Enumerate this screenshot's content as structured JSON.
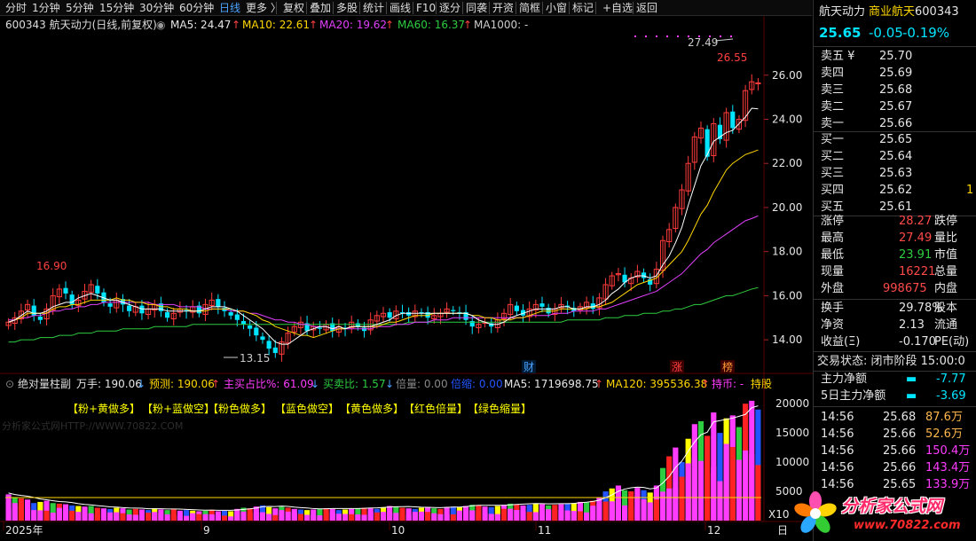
{
  "toolbar": {
    "items": [
      "分时",
      "1分钟",
      "5分钟",
      "15分钟",
      "30分钟",
      "60分钟",
      "日线",
      "更多 〉",
      "复权",
      "叠加",
      "多股",
      "统计",
      "画线",
      "F10",
      "逐分",
      "同袭",
      "开资",
      "简框",
      "小窗",
      "标记",
      "+自选",
      "返回"
    ]
  },
  "main": {
    "title": "600343 航天动力(日线,前复权)",
    "ma5": "MA5: 24.47",
    "ma10": "MA10: 22.61",
    "ma20": "MA20: 19.62",
    "ma60": "MA60: 16.37",
    "ma1000": "MA1000: -",
    "high_label": "27.49",
    "left_high_label": "16.90",
    "low_label": "13.15",
    "last_high_label": "26.55",
    "markers": [
      "财",
      "涨",
      "榜"
    ],
    "y_ticks": [
      "26.00",
      "24.00",
      "22.00",
      "20.00",
      "18.00",
      "16.00",
      "14.00"
    ]
  },
  "volume": {
    "title": "绝对量柱副",
    "wan": "万手: 190.06",
    "predict": "预测: 190.06",
    "buy_ratio": "主买占比%: 61.09",
    "buy_sell": "买卖比: 1.57",
    "bei": "倍量: 0.00",
    "bei2": "倍缩: 0.00",
    "vma5": "MA5: 1719698.75",
    "vma120": "MA120: 395536.38",
    "hold": "持币: -",
    "hold2": "持股",
    "tags": [
      "【粉+黄做多】",
      "【粉+蓝做空】",
      "【粉色做多】",
      "【蓝色做空】",
      "【黄色做多】",
      "【红色倍量】",
      "【绿色缩量】"
    ],
    "watermark": "分析家公式网HTTP://WWW.70822.COM",
    "y_ticks": [
      "20000",
      "15000",
      "10000",
      "5000"
    ],
    "unit": "X10"
  },
  "xaxis": {
    "labels": [
      "2025年",
      "9",
      "10",
      "11",
      "12"
    ],
    "right": "日"
  },
  "panel": {
    "name": "航天动力",
    "sector": "商业航天",
    "code": "600343",
    "price": "25.65",
    "change": "-0.05",
    "pct": "-0.19%",
    "asks": [
      {
        "label": "卖五 ¥",
        "price": "25.70"
      },
      {
        "label": "卖四",
        "price": "25.69"
      },
      {
        "label": "卖三",
        "price": "25.68"
      },
      {
        "label": "卖二",
        "price": "25.67"
      },
      {
        "label": "卖一",
        "price": "25.66"
      }
    ],
    "bids": [
      {
        "label": "买一",
        "price": "25.65",
        "qty": ""
      },
      {
        "label": "买二",
        "price": "25.64",
        "qty": ""
      },
      {
        "label": "买三",
        "price": "25.63",
        "qty": ""
      },
      {
        "label": "买四",
        "price": "25.62",
        "qty": "1"
      },
      {
        "label": "买五",
        "price": "25.61",
        "qty": ""
      }
    ],
    "stats1": [
      {
        "l": "涨停",
        "v": "28.27",
        "r": "跌停",
        "c": "red"
      },
      {
        "l": "最高",
        "v": "27.49",
        "r": "量比",
        "c": "red"
      },
      {
        "l": "最低",
        "v": "23.91",
        "r": "市值",
        "c": "green"
      },
      {
        "l": "现量",
        "v": "16221",
        "r": "总量",
        "c": "red"
      },
      {
        "l": "外盘",
        "v": "998675",
        "r": "内盘",
        "c": "red"
      }
    ],
    "stats2": [
      {
        "l": "换手",
        "v": "29.78%",
        "r": "股本"
      },
      {
        "l": "净资",
        "v": "2.13",
        "r": "流通"
      },
      {
        "l": "收益(Ξ)",
        "v": "-0.170",
        "r": "PE(动)"
      }
    ],
    "status_label": "交易状态: 闭市阶段 15:00:0",
    "fund": [
      {
        "l": "主力净额",
        "v": "-7.77"
      },
      {
        "l": "5日主力净额",
        "v": "-3.69"
      }
    ],
    "ticks": [
      {
        "t": "14:56",
        "p": "25.68",
        "q": "87.6万",
        "c": "orange"
      },
      {
        "t": "14:56",
        "p": "25.66",
        "q": "52.6万",
        "c": "orange"
      },
      {
        "t": "14:56",
        "p": "25.66",
        "q": "150.4万",
        "c": "magenta"
      },
      {
        "t": "14:56",
        "p": "25.66",
        "q": "143.4万",
        "c": "magenta"
      },
      {
        "t": "14:56",
        "p": "25.65",
        "q": "133.9万",
        "c": "magenta"
      }
    ]
  },
  "logo": {
    "text": "分析家公式网",
    "url": "www.70822.com"
  },
  "chart_data": {
    "type": "candlestick",
    "ylim": [
      13.0,
      27.8
    ],
    "close": [
      14.8,
      15.0,
      15.3,
      15.6,
      15.1,
      14.9,
      15.4,
      16.0,
      16.3,
      16.1,
      15.6,
      15.8,
      16.2,
      16.5,
      16.1,
      15.7,
      15.5,
      15.8,
      15.6,
      15.3,
      15.5,
      15.2,
      15.4,
      15.6,
      15.3,
      15.0,
      15.2,
      15.4,
      15.3,
      15.5,
      15.2,
      15.6,
      15.8,
      15.5,
      15.3,
      15.1,
      14.9,
      14.7,
      14.5,
      14.2,
      14.0,
      13.6,
      13.4,
      13.9,
      14.3,
      14.6,
      14.8,
      14.4,
      14.6,
      14.5,
      14.7,
      14.4,
      14.6,
      14.5,
      14.8,
      14.6,
      14.4,
      14.9,
      15.1,
      15.2,
      15.0,
      15.3,
      15.2,
      15.1,
      15.3,
      15.2,
      15.0,
      15.1,
      15.2,
      15.4,
      15.3,
      15.2,
      14.9,
      14.6,
      14.7,
      14.8,
      14.6,
      14.9,
      15.2,
      15.6,
      15.3,
      15.1,
      15.4,
      15.6,
      15.5,
      15.2,
      15.4,
      15.6,
      15.5,
      15.3,
      15.5,
      15.7,
      15.4,
      15.9,
      16.5,
      16.9,
      17.0,
      16.6,
      16.8,
      17.1,
      16.8,
      16.5,
      17.2,
      18.5,
      19.0,
      20.0,
      20.8,
      22.0,
      23.2,
      23.6,
      22.3,
      23.8,
      23.1,
      24.3,
      23.6,
      24.0,
      25.3,
      25.7,
      25.65
    ],
    "volume": [
      4500,
      4000,
      3800,
      3600,
      3000,
      3200,
      3400,
      3000,
      2900,
      2800,
      2600,
      2500,
      2400,
      2500,
      2200,
      2100,
      2000,
      2200,
      2100,
      1900,
      2000,
      1900,
      1800,
      2100,
      1900,
      1800,
      1900,
      1700,
      1800,
      1700,
      1600,
      1700,
      1800,
      1600,
      1700,
      1600,
      2000,
      2200,
      2100,
      2400,
      2600,
      2300,
      2100,
      2400,
      2200,
      2000,
      1900,
      1800,
      1900,
      2000,
      2100,
      2000,
      1800,
      1900,
      2000,
      2100,
      2200,
      2100,
      2000,
      2300,
      2500,
      2400,
      2200,
      2100,
      2000,
      2200,
      2300,
      2100,
      2000,
      2200,
      2400,
      2300,
      2500,
      2700,
      2600,
      2400,
      2300,
      2500,
      2700,
      2900,
      2800,
      2600,
      2700,
      2900,
      2800,
      2600,
      2700,
      2800,
      2900,
      3000,
      3200,
      3100,
      3400,
      4000,
      5000,
      5500,
      6000,
      5200,
      5000,
      5600,
      5200,
      4800,
      6000,
      9000,
      11000,
      12500,
      10000,
      14000,
      16500,
      17000,
      14500,
      18500,
      15000,
      17500,
      18000,
      16000,
      20000,
      20500,
      19000
    ],
    "ma5": [
      14.8,
      14.9,
      15.1,
      15.3,
      15.2,
      15.2,
      15.3,
      15.5,
      15.6,
      15.7,
      15.7,
      15.9,
      16.0,
      16.1,
      16.0,
      15.9,
      15.8,
      15.8,
      15.7,
      15.6,
      15.5,
      15.4,
      15.4,
      15.4,
      15.4,
      15.3,
      15.3,
      15.3,
      15.3,
      15.3,
      15.3,
      15.4,
      15.5,
      15.5,
      15.5,
      15.4,
      15.3,
      15.1,
      14.9,
      14.7,
      14.5,
      14.2,
      13.9,
      13.8,
      13.8,
      14.0,
      14.2,
      14.4,
      14.5,
      14.6,
      14.6,
      14.5,
      14.6,
      14.5,
      14.6,
      14.6,
      14.6,
      14.6,
      14.7,
      14.8,
      14.9,
      15.1,
      15.2,
      15.2,
      15.2,
      15.2,
      15.2,
      15.2,
      15.2,
      15.2,
      15.2,
      15.2,
      15.2,
      15.1,
      14.9,
      14.8,
      14.7,
      14.7,
      14.8,
      15.0,
      15.1,
      15.2,
      15.3,
      15.4,
      15.4,
      15.4,
      15.4,
      15.5,
      15.5,
      15.4,
      15.4,
      15.5,
      15.5,
      15.6,
      15.8,
      16.1,
      16.3,
      16.6,
      16.8,
      16.9,
      16.9,
      16.8,
      16.9,
      17.4,
      17.8,
      18.4,
      19.1,
      20.1,
      21.0,
      21.9,
      22.4,
      23.0,
      23.2,
      23.4,
      23.5,
      23.8,
      24.1,
      24.5,
      24.47
    ],
    "ma10": [
      14.8,
      14.9,
      15.0,
      15.2,
      15.2,
      15.2,
      15.2,
      15.4,
      15.5,
      15.5,
      15.6,
      15.6,
      15.7,
      15.8,
      15.8,
      15.8,
      15.8,
      15.9,
      15.8,
      15.8,
      15.7,
      15.7,
      15.6,
      15.6,
      15.5,
      15.5,
      15.4,
      15.4,
      15.4,
      15.3,
      15.3,
      15.3,
      15.4,
      15.4,
      15.4,
      15.4,
      15.3,
      15.3,
      15.2,
      15.1,
      14.9,
      14.8,
      14.6,
      14.5,
      14.4,
      14.3,
      14.2,
      14.2,
      14.1,
      14.2,
      14.3,
      14.4,
      14.5,
      14.5,
      14.6,
      14.6,
      14.6,
      14.6,
      14.6,
      14.7,
      14.8,
      14.8,
      14.9,
      15.0,
      15.1,
      15.1,
      15.1,
      15.2,
      15.2,
      15.2,
      15.2,
      15.2,
      15.2,
      15.1,
      15.1,
      15.0,
      15.0,
      14.9,
      14.9,
      14.9,
      15.0,
      15.0,
      15.1,
      15.2,
      15.3,
      15.3,
      15.3,
      15.4,
      15.4,
      15.4,
      15.4,
      15.4,
      15.5,
      15.5,
      15.6,
      15.7,
      15.9,
      16.1,
      16.3,
      16.5,
      16.6,
      16.7,
      16.8,
      17.1,
      17.4,
      17.7,
      18.0,
      18.5,
      19.1,
      19.7,
      20.1,
      20.7,
      21.2,
      21.7,
      22.0,
      22.2,
      22.4,
      22.5,
      22.61
    ],
    "ma20": [
      14.9,
      14.9,
      15.0,
      15.0,
      15.1,
      15.1,
      15.2,
      15.3,
      15.3,
      15.4,
      15.4,
      15.5,
      15.5,
      15.6,
      15.6,
      15.7,
      15.7,
      15.7,
      15.7,
      15.7,
      15.7,
      15.7,
      15.7,
      15.6,
      15.6,
      15.6,
      15.6,
      15.5,
      15.5,
      15.5,
      15.5,
      15.4,
      15.4,
      15.4,
      15.4,
      15.3,
      15.3,
      15.3,
      15.2,
      15.2,
      15.1,
      15.0,
      14.9,
      14.9,
      14.8,
      14.8,
      14.7,
      14.7,
      14.6,
      14.6,
      14.6,
      14.5,
      14.5,
      14.5,
      14.5,
      14.5,
      14.5,
      14.5,
      14.6,
      14.6,
      14.6,
      14.7,
      14.7,
      14.7,
      14.8,
      14.8,
      14.8,
      14.9,
      14.9,
      14.9,
      15.0,
      15.0,
      15.0,
      15.0,
      15.0,
      15.0,
      15.0,
      15.0,
      15.0,
      15.0,
      15.0,
      15.0,
      15.1,
      15.1,
      15.1,
      15.1,
      15.2,
      15.2,
      15.2,
      15.3,
      15.3,
      15.3,
      15.3,
      15.4,
      15.4,
      15.5,
      15.6,
      15.7,
      15.8,
      15.9,
      16.0,
      16.1,
      16.2,
      16.4,
      16.6,
      16.8,
      17.0,
      17.3,
      17.6,
      17.9,
      18.1,
      18.4,
      18.6,
      18.8,
      19.0,
      19.2,
      19.4,
      19.5,
      19.62
    ],
    "ma60": [
      13.9,
      13.9,
      14.0,
      14.0,
      14.0,
      14.1,
      14.1,
      14.1,
      14.2,
      14.2,
      14.2,
      14.3,
      14.3,
      14.3,
      14.4,
      14.4,
      14.4,
      14.4,
      14.5,
      14.5,
      14.5,
      14.5,
      14.5,
      14.6,
      14.6,
      14.6,
      14.6,
      14.6,
      14.6,
      14.7,
      14.7,
      14.7,
      14.7,
      14.7,
      14.7,
      14.7,
      14.7,
      14.7,
      14.7,
      14.7,
      14.7,
      14.7,
      14.7,
      14.7,
      14.7,
      14.7,
      14.7,
      14.7,
      14.7,
      14.7,
      14.7,
      14.7,
      14.7,
      14.7,
      14.7,
      14.7,
      14.7,
      14.7,
      14.7,
      14.7,
      14.7,
      14.7,
      14.7,
      14.8,
      14.8,
      14.8,
      14.8,
      14.8,
      14.8,
      14.8,
      14.8,
      14.8,
      14.8,
      14.8,
      14.8,
      14.8,
      14.8,
      14.8,
      14.8,
      14.8,
      14.8,
      14.8,
      14.8,
      14.8,
      14.8,
      14.8,
      14.8,
      14.8,
      14.9,
      14.9,
      14.9,
      14.9,
      14.9,
      14.9,
      15.0,
      15.0,
      15.0,
      15.1,
      15.1,
      15.1,
      15.2,
      15.2,
      15.2,
      15.3,
      15.3,
      15.4,
      15.4,
      15.5,
      15.6,
      15.6,
      15.7,
      15.8,
      15.9,
      16.0,
      16.0,
      16.1,
      16.2,
      16.3,
      16.37
    ]
  }
}
